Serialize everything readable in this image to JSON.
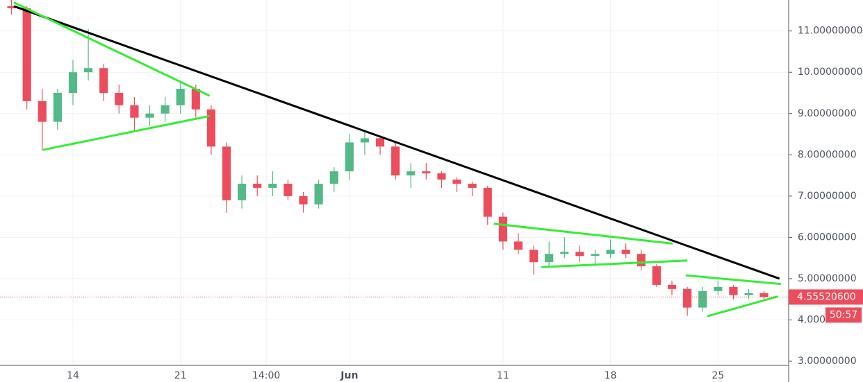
{
  "chart_data": {
    "type": "candlestick",
    "up_color": "#53b987",
    "down_color": "#eb4d5c",
    "grid": true,
    "xlim": [
      9.25,
      60.6
    ],
    "ylim": [
      2.9,
      11.75
    ],
    "xticks": [
      {
        "value": 14,
        "label": "14"
      },
      {
        "value": 21,
        "label": "21"
      },
      {
        "value": 26.583,
        "label": "14:00"
      },
      {
        "value": 32,
        "label": "Jun"
      },
      {
        "value": 42,
        "label": "11"
      },
      {
        "value": 49,
        "label": "18"
      },
      {
        "value": 56,
        "label": "25"
      }
    ],
    "yticks": [
      {
        "value": 3,
        "label": "3.00000000"
      },
      {
        "value": 4,
        "label": "4.00000000"
      },
      {
        "value": 5,
        "label": "5.00000000"
      },
      {
        "value": 6,
        "label": "6.00000000"
      },
      {
        "value": 7,
        "label": "7.00000000"
      },
      {
        "value": 8,
        "label": "8.00000000"
      },
      {
        "value": 9,
        "label": "9.00000000"
      },
      {
        "value": 10,
        "label": "10.00000000"
      },
      {
        "value": 11,
        "label": "11.00000000"
      }
    ],
    "candles": {
      "x": [
        10,
        11,
        12,
        13,
        14,
        15,
        16,
        17,
        18,
        19,
        20,
        21,
        22,
        23,
        24,
        25,
        26,
        27,
        28,
        29,
        30,
        31,
        32,
        33,
        34,
        35,
        36,
        37,
        38,
        39,
        40,
        41,
        42,
        43,
        44,
        45,
        46,
        47,
        48,
        49,
        50,
        51,
        52,
        53,
        54,
        55,
        56,
        57,
        58,
        59
      ],
      "open": [
        11.6,
        11.55,
        9.3,
        8.8,
        9.5,
        10.0,
        10.1,
        9.5,
        9.2,
        8.9,
        9.0,
        9.2,
        9.6,
        9.1,
        8.2,
        6.9,
        7.3,
        7.2,
        7.3,
        7.0,
        6.8,
        7.3,
        7.6,
        8.3,
        8.4,
        8.2,
        7.5,
        7.6,
        7.55,
        7.4,
        7.3,
        7.2,
        6.5,
        5.9,
        5.7,
        5.4,
        5.6,
        5.65,
        5.55,
        5.6,
        5.7,
        5.6,
        5.3,
        4.85,
        4.75,
        4.3,
        4.7,
        4.8,
        4.6,
        4.65
      ],
      "high": [
        11.75,
        11.6,
        9.6,
        9.6,
        10.3,
        11.05,
        10.2,
        9.7,
        9.4,
        9.2,
        9.4,
        9.8,
        9.7,
        9.2,
        8.3,
        7.5,
        7.5,
        7.6,
        7.4,
        7.1,
        7.4,
        7.7,
        8.5,
        8.55,
        8.45,
        8.3,
        7.8,
        7.8,
        7.6,
        7.45,
        7.35,
        7.25,
        6.6,
        6.1,
        5.8,
        5.9,
        6.0,
        5.8,
        5.7,
        5.95,
        5.85,
        5.7,
        5.35,
        4.95,
        4.8,
        4.8,
        4.95,
        4.85,
        4.75,
        4.7
      ],
      "low": [
        11.4,
        9.1,
        8.1,
        8.6,
        9.2,
        9.8,
        9.3,
        9.0,
        8.6,
        8.7,
        8.8,
        9.0,
        8.9,
        8.0,
        6.6,
        6.7,
        7.0,
        7.0,
        6.9,
        6.6,
        6.7,
        7.1,
        7.4,
        8.0,
        8.0,
        7.4,
        7.2,
        7.4,
        7.2,
        7.1,
        7.0,
        6.3,
        5.7,
        5.6,
        5.1,
        5.3,
        5.5,
        5.4,
        5.3,
        5.5,
        5.5,
        5.2,
        4.8,
        4.6,
        4.1,
        4.2,
        4.6,
        4.5,
        4.5,
        4.5
      ],
      "close": [
        11.55,
        9.3,
        8.8,
        9.5,
        10.0,
        10.1,
        9.5,
        9.2,
        8.9,
        9.0,
        9.2,
        9.6,
        9.1,
        8.2,
        6.9,
        7.3,
        7.2,
        7.3,
        7.0,
        6.8,
        7.3,
        7.6,
        8.3,
        8.4,
        8.2,
        7.5,
        7.6,
        7.55,
        7.4,
        7.3,
        7.2,
        6.5,
        5.9,
        5.7,
        5.4,
        5.6,
        5.65,
        5.55,
        5.6,
        5.7,
        5.6,
        5.3,
        4.85,
        4.75,
        4.3,
        4.7,
        4.8,
        4.6,
        4.65,
        4.555206
      ]
    },
    "trendlines": [
      {
        "color": "#000000",
        "x": [
          10.15,
          60.0
        ],
        "y": [
          11.6,
          5.0
        ]
      },
      {
        "color": "#33ee33",
        "x": [
          10.15,
          22.9
        ],
        "y": [
          11.69,
          9.43
        ]
      },
      {
        "color": "#33ee33",
        "x": [
          12.05,
          22.9
        ],
        "y": [
          8.12,
          8.94
        ]
      },
      {
        "color": "#33ee33",
        "x": [
          41.4,
          53.05
        ],
        "y": [
          6.33,
          5.85
        ]
      },
      {
        "color": "#33ee33",
        "x": [
          44.5,
          54.0
        ],
        "y": [
          5.28,
          5.44
        ]
      },
      {
        "color": "#33ee33",
        "x": [
          53.9,
          60.1
        ],
        "y": [
          5.08,
          4.87
        ]
      },
      {
        "color": "#33ee33",
        "x": [
          55.3,
          59.9
        ],
        "y": [
          4.09,
          4.57
        ]
      }
    ],
    "last_price": {
      "value": 4.555206,
      "label": "4.55520600"
    },
    "countdown": "50:57"
  }
}
